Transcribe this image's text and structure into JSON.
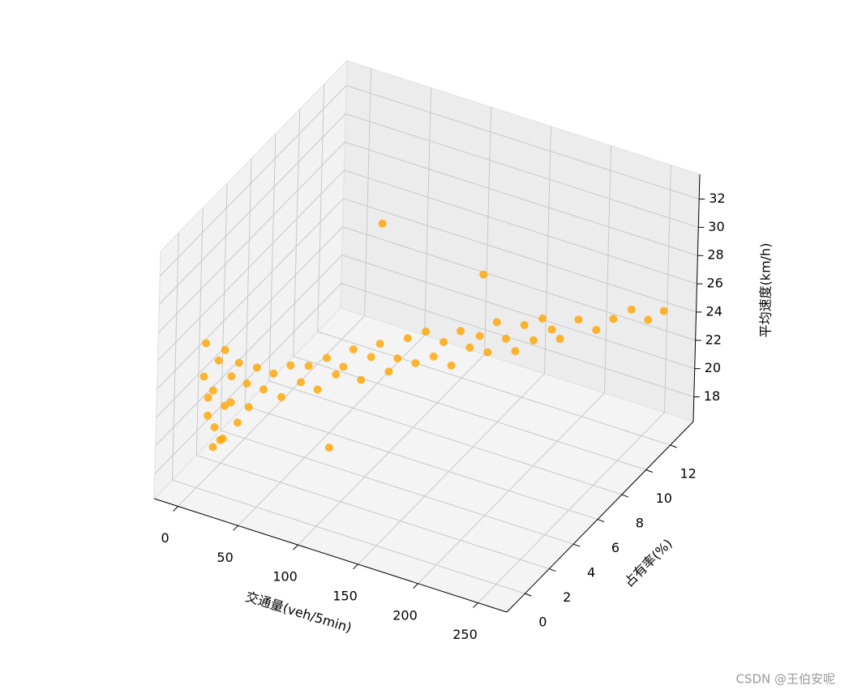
{
  "chart_data": {
    "type": "scatter3d",
    "xlabel": "交通量(veh/5min)",
    "ylabel": "占有率(%)",
    "zlabel": "平均速度(km/h)",
    "xlim": [
      -20,
      274
    ],
    "ylim": [
      -1.5,
      13.9
    ],
    "zlim": [
      16.25,
      33.75
    ],
    "xticks": [
      0,
      50,
      100,
      150,
      200,
      250
    ],
    "yticks": [
      0,
      2,
      4,
      6,
      8,
      10,
      12
    ],
    "zticks": [
      18,
      20,
      22,
      24,
      26,
      28,
      30,
      32
    ],
    "grid": true,
    "color": "#ffa500",
    "x": [
      2,
      3,
      5,
      6,
      8,
      10,
      12,
      14,
      15,
      18,
      20,
      22,
      25,
      28,
      30,
      4,
      7,
      9,
      16,
      35,
      40,
      45,
      50,
      55,
      60,
      65,
      70,
      75,
      80,
      85,
      90,
      95,
      100,
      105,
      110,
      115,
      120,
      125,
      130,
      135,
      140,
      145,
      150,
      155,
      160,
      165,
      170,
      175,
      180,
      185,
      190,
      195,
      200,
      210,
      220,
      230,
      240,
      250,
      258,
      80,
      70,
      150
    ],
    "y": [
      0.2,
      0.5,
      0.3,
      0.8,
      0.4,
      0.6,
      1.0,
      0.7,
      1.2,
      0.9,
      1.3,
      1.1,
      1.5,
      1.4,
      1.8,
      0.1,
      0.6,
      1.0,
      0.5,
      1.9,
      2.2,
      2.4,
      2.6,
      3.0,
      3.1,
      3.4,
      3.6,
      3.9,
      4.0,
      4.3,
      4.5,
      4.8,
      5.0,
      5.3,
      5.5,
      5.8,
      6.0,
      6.3,
      6.5,
      6.8,
      7.0,
      7.2,
      7.5,
      7.8,
      8.0,
      8.2,
      8.5,
      8.8,
      9.0,
      9.3,
      9.5,
      9.8,
      10.0,
      10.5,
      11.0,
      11.4,
      11.9,
      12.3,
      12.8,
      7,
      4,
      8.5
    ],
    "z": [
      24,
      21,
      22.5,
      20,
      23,
      25,
      21.5,
      19.5,
      23.5,
      22,
      24.5,
      20.5,
      23,
      21.5,
      24,
      26.5,
      18.8,
      19,
      26,
      22.5,
      23.5,
      21.8,
      24,
      22.6,
      23.8,
      22,
      24.2,
      22.9,
      23.5,
      24.6,
      22.4,
      23.9,
      24.8,
      22.7,
      23.6,
      24.9,
      23.1,
      25.2,
      23.4,
      24.3,
      22.6,
      25,
      23.7,
      24.4,
      23.2,
      25.3,
      24,
      23,
      24.8,
      23.6,
      25.1,
      24.2,
      23.5,
      24.7,
      23.8,
      24.5,
      25,
      24.2,
      24.6,
      31,
      17.5,
      28
    ]
  },
  "watermark": "CSDN @王伯安呢"
}
